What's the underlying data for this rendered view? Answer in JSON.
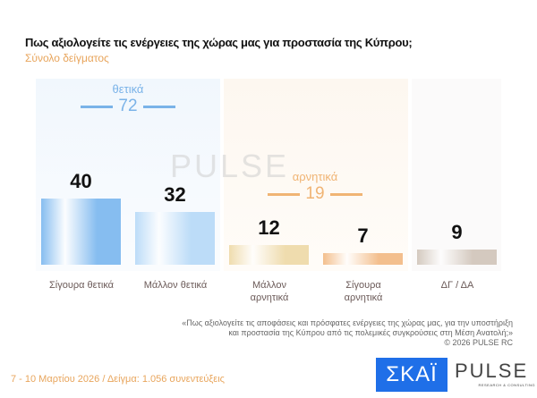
{
  "title": "Πως αξιολογείτε τις ενέργειες της χώρας μας για προστασία της Κύπρου;",
  "subtitle": "Σύνολο δείγματος",
  "chart_data": {
    "type": "bar",
    "categories": [
      "Σίγουρα θετικά",
      "Μάλλον θετικά",
      "Μάλλον αρνητικά",
      "Σίγουρα αρνητικά",
      "ΔΓ / ΔΑ"
    ],
    "values": [
      40,
      32,
      12,
      7,
      9
    ],
    "groups": [
      {
        "label": "θετικά",
        "total": "72",
        "color": "#7ab3e8"
      },
      {
        "label": "αρνητικά",
        "total": "19",
        "color": "#f0b474"
      }
    ],
    "colors": [
      "#86bdf0",
      "#bcdcf8",
      "#efdcae",
      "#f3bf8d",
      "#d4c9bf"
    ]
  },
  "note": [
    "«Πως αξιολογείτε τις αποφάσεις και πρόσφατες ενέργειες της χώρας μας, για την υποστήριξη",
    "και προστασία της Κύπρου από τις πολεμικές συγκρούσεις στη Μέση Ανατολή;»",
    "©  2026  PULSE RC"
  ],
  "footer": "7 - 10  Μαρτίου 2026  /  Δείγμα:  1.056 συνεντεύξεις",
  "logos": {
    "skai": "ΣΚΑΪ",
    "pulse": "PULSE",
    "pulse_sub": "RESEARCH & CONSULTING"
  }
}
